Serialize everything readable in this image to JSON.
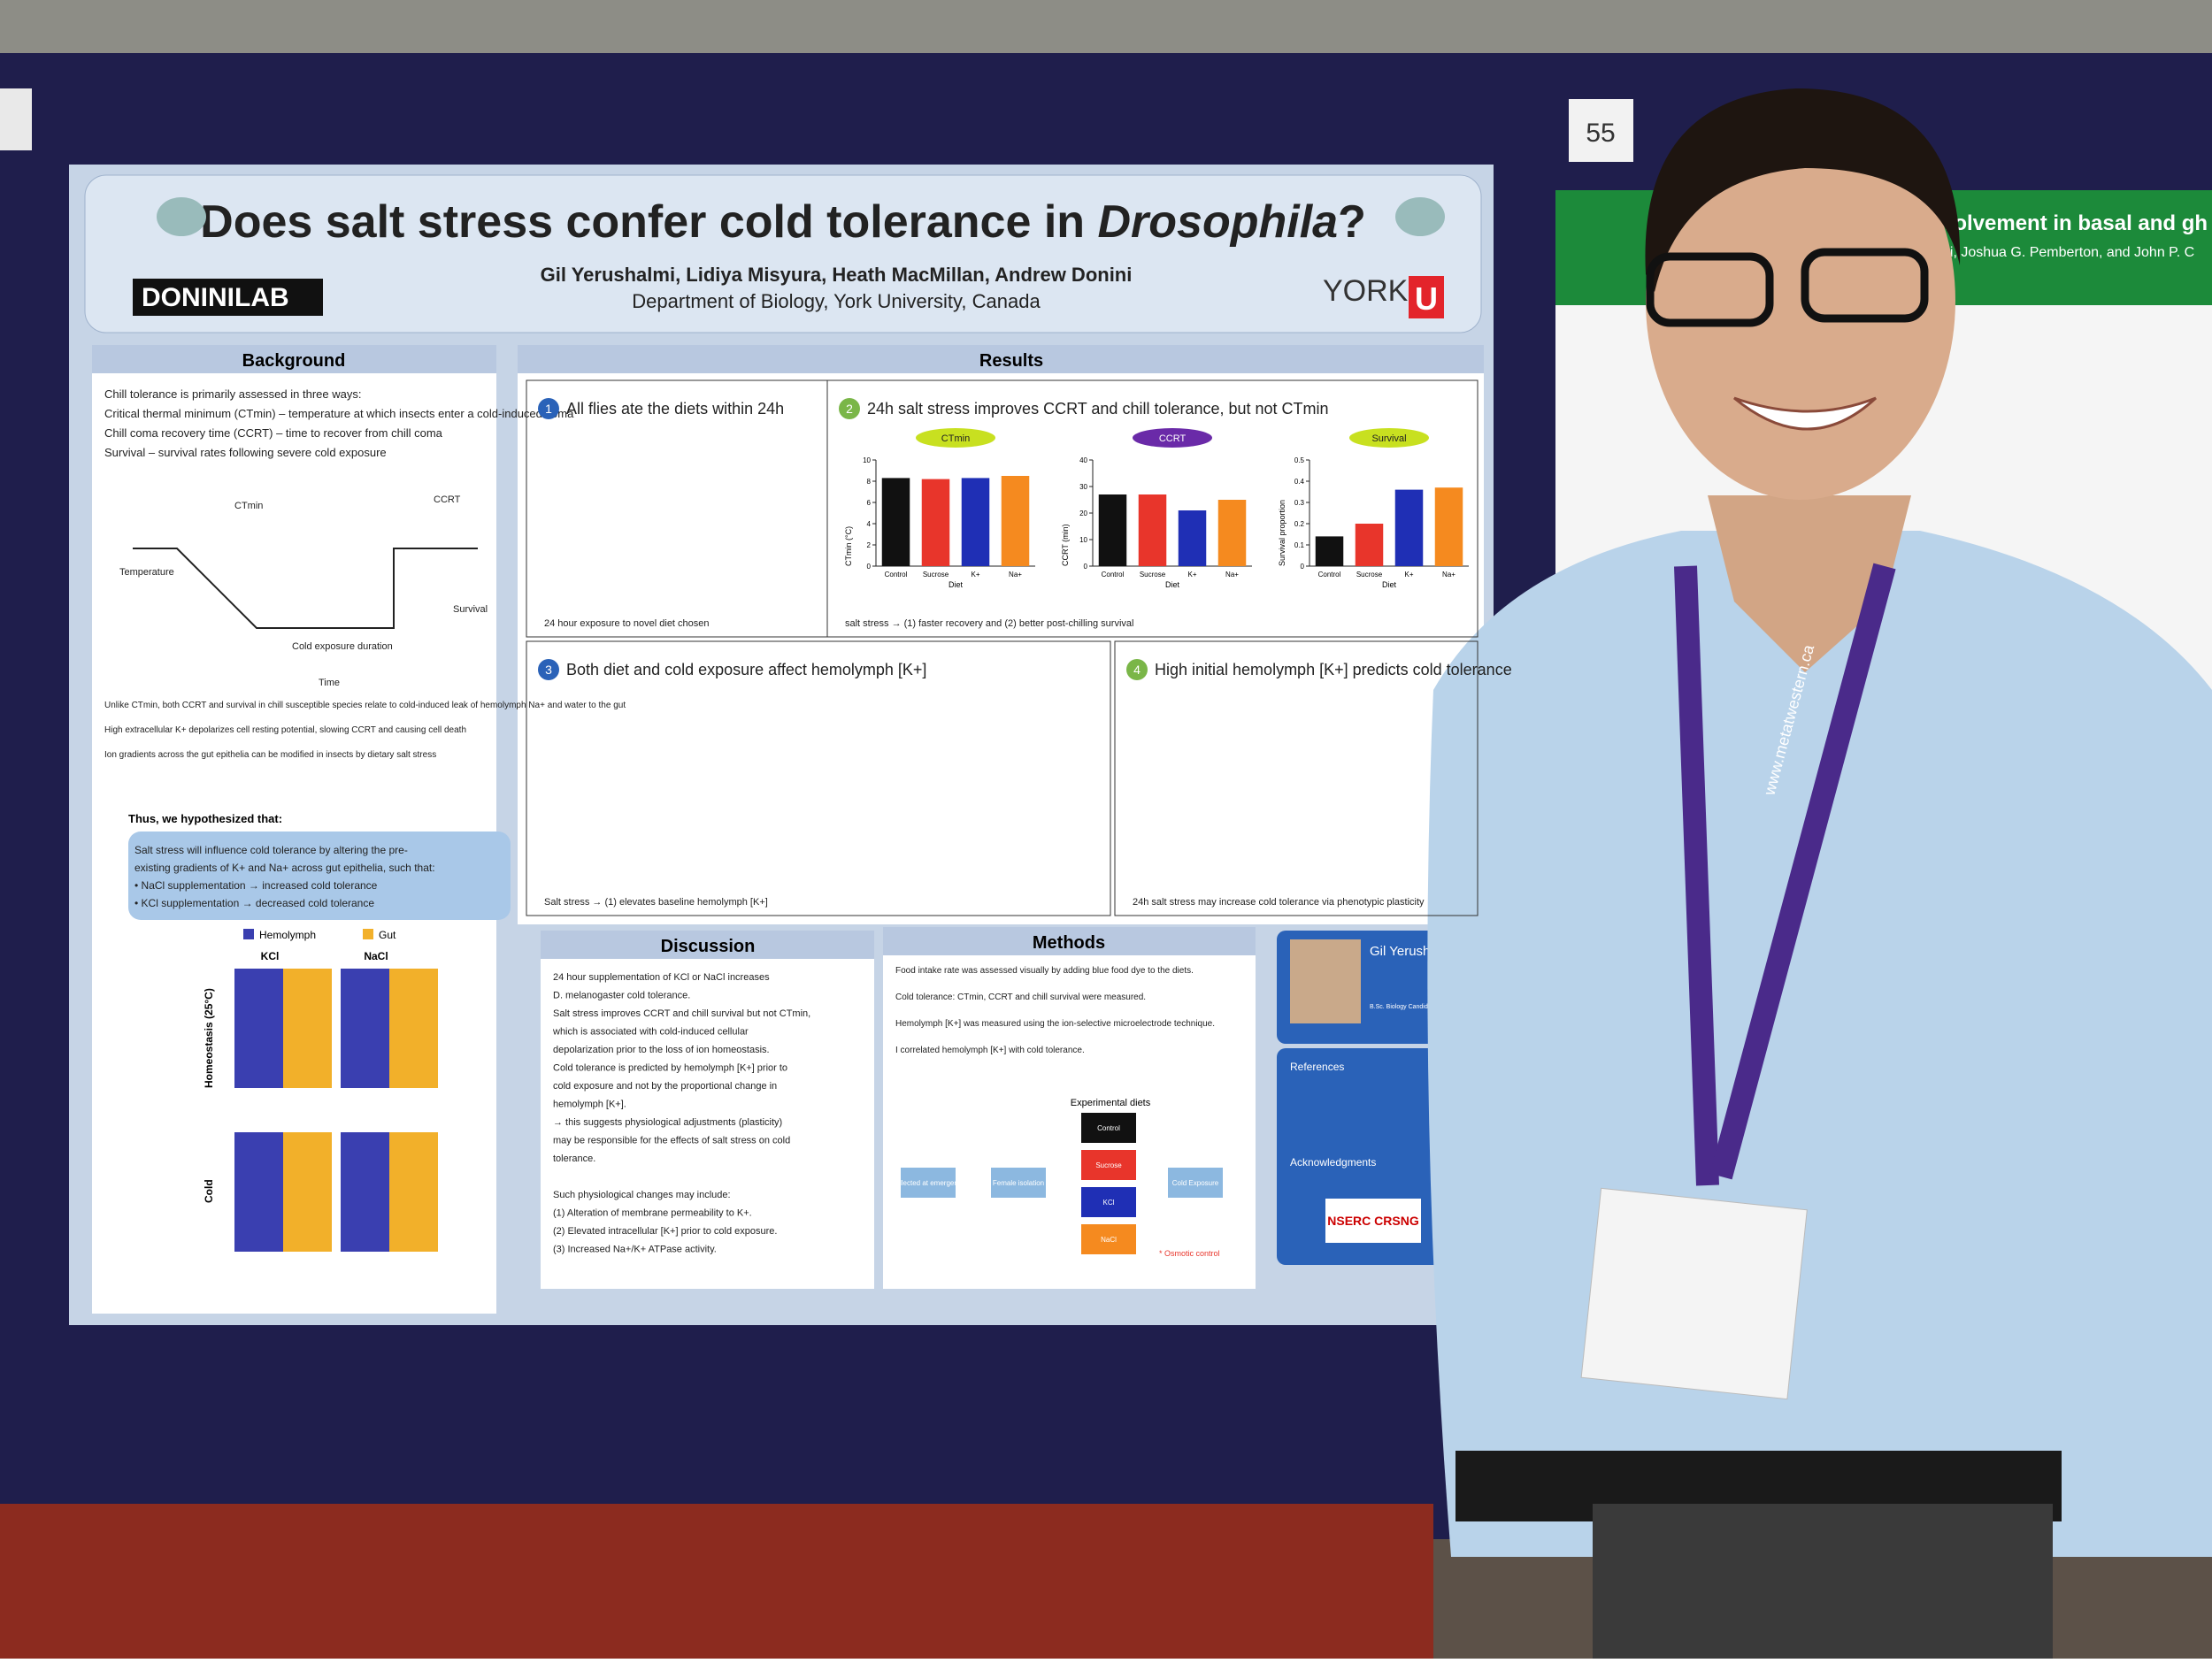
{
  "sign_number": "55",
  "poster": {
    "title": "Does salt stress confer cold tolerance in ",
    "title_italic": "Drosophila",
    "title_end": "?",
    "lab": "DONINILAB",
    "university": "YORK",
    "university_mark": "U",
    "authors": "Gil Yerushalmi, Lidiya Misyura, Heath MacMillan, Andrew Donini",
    "affiliation": "Department of Biology, York University, Canada",
    "background": {
      "heading": "Background",
      "bullets": [
        "Chill tolerance is primarily assessed in three ways:",
        "Critical thermal minimum (CTmin) – temperature at which insects enter a cold-induced coma",
        "Chill coma recovery time (CCRT) – time to recover from chill coma",
        "Survival – survival rates following severe cold exposure"
      ],
      "diagram_labels": [
        "CTmin",
        "CCRT",
        "Survival",
        "Cold exposure duration",
        "Time",
        "Temperature"
      ],
      "notes": [
        "Unlike CTmin, both CCRT and survival in chill susceptible species relate to cold-induced leak of hemolymph Na+ and water to the gut",
        "High extracellular K+ depolarizes cell resting potential, slowing CCRT and causing cell death",
        "Ion gradients across the gut epithelia can be modified in insects by dietary salt stress"
      ],
      "hypothesis_heading": "Thus, we hypothesized that:",
      "hypothesis": [
        "Salt stress will influence cold tolerance by altering the pre-",
        "existing gradients of K+ and Na+ across gut epithelia, such that:",
        "• NaCl supplementation → increased cold tolerance",
        "• KCl supplementation → decreased cold tolerance"
      ],
      "legend": [
        "Hemolymph",
        "Gut"
      ],
      "columns": [
        "KCl",
        "NaCl"
      ],
      "rows": [
        "Homeostasis (25°C)",
        "Cold"
      ]
    },
    "results": {
      "heading": "Results",
      "panels": [
        {
          "number": "1",
          "title": "All flies ate the diets within 24h",
          "note": "24 hour exposure to novel diet chosen"
        },
        {
          "number": "2",
          "title": "24h salt stress improves CCRT and chill tolerance, but not CTmin",
          "x_label": "Diet",
          "categories": [
            "Control",
            "Sucrose",
            "K+",
            "Na+"
          ],
          "colors": [
            "#111111",
            "#e8352b",
            "#1f2fb5",
            "#f58a1f"
          ],
          "charts": [
            {
              "badge": "CTmin",
              "y_label": "CTmin (°C)",
              "ylim": [
                0,
                10
              ],
              "yticks": [
                0,
                2,
                4,
                6,
                8,
                10
              ],
              "values": [
                8.3,
                8.2,
                8.3,
                8.5
              ]
            },
            {
              "badge": "CCRT",
              "y_label": "CCRT (min)",
              "ylim": [
                0,
                40
              ],
              "yticks": [
                0,
                10,
                20,
                30,
                40
              ],
              "values": [
                27,
                27,
                21,
                25
              ]
            },
            {
              "badge": "Survival",
              "y_label": "Survival proportion",
              "ylim": [
                0,
                0.5
              ],
              "yticks": [
                0,
                0.1,
                0.2,
                0.3,
                0.4,
                0.5
              ],
              "values": [
                0.14,
                0.2,
                0.36,
                0.37
              ]
            }
          ],
          "note": "salt stress → (1) faster recovery and (2) better post-chilling survival"
        },
        {
          "number": "3",
          "title": "Both diet and cold exposure affect hemolymph [K+]",
          "note": "Salt stress → (1) elevates baseline hemolymph [K+]"
        },
        {
          "number": "4",
          "title": "High initial hemolymph [K+] predicts cold tolerance",
          "note": "24h salt stress may increase cold tolerance via phenotypic plasticity"
        }
      ]
    },
    "discussion": {
      "heading": "Discussion",
      "bullets": [
        "24 hour supplementation of KCl or NaCl increases",
        "D. melanogaster cold tolerance.",
        "Salt stress improves CCRT and chill survival but not CTmin,",
        "which is associated with cold-induced cellular",
        "depolarization prior to the loss of ion homeostasis.",
        "Cold tolerance is predicted by hemolymph [K+] prior to",
        "cold exposure and not by the proportional change in",
        "hemolymph [K+].",
        "→ this suggests physiological adjustments (plasticity)",
        "may be responsible for the effects of salt stress on cold",
        "tolerance.",
        "",
        "Such physiological changes may include:",
        "(1) Alteration of membrane permeability to K+.",
        "(2) Elevated intracellular [K+] prior to cold exposure.",
        "(3) Increased Na+/K+ ATPase activity."
      ]
    },
    "methods": {
      "heading": "Methods",
      "steps": [
        "Food intake rate was assessed visually by adding blue food dye to the diets.",
        "Cold tolerance: CTmin, CCRT and chill survival were measured.",
        "Hemolymph [K+] was measured using the ion-selective microelectrode technique.",
        "I correlated hemolymph [K+] with cold tolerance."
      ],
      "flow_heading": "Experimental diets",
      "flow": [
        "Collected at emergence",
        "Female isolation",
        "Control",
        "Sucrose",
        "KCl",
        "NaCl",
        "Cold Exposure"
      ],
      "footnote": "* Osmotic control"
    },
    "profile": {
      "name": "Gil Yerushalmi",
      "detail": "B.Sc. Biology Candidate, York University, Canada"
    },
    "references_heading": "References",
    "acknowledgments_heading": "Acknowledgments",
    "funder": "NSERC CRSNG"
  },
  "neighbor_poster": {
    "title": "volvement in basal and gh",
    "authors": "hi, Joshua G. Pemberton, and John P. C"
  },
  "lanyard": "www.metatwestern.ca"
}
